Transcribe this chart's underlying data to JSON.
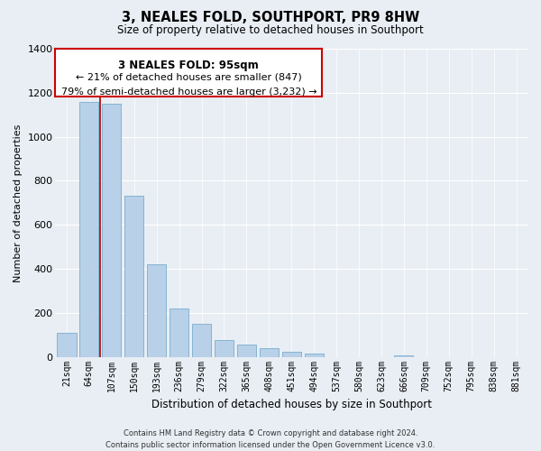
{
  "title": "3, NEALES FOLD, SOUTHPORT, PR9 8HW",
  "subtitle": "Size of property relative to detached houses in Southport",
  "xlabel": "Distribution of detached houses by size in Southport",
  "ylabel": "Number of detached properties",
  "categories": [
    "21sqm",
    "64sqm",
    "107sqm",
    "150sqm",
    "193sqm",
    "236sqm",
    "279sqm",
    "322sqm",
    "365sqm",
    "408sqm",
    "451sqm",
    "494sqm",
    "537sqm",
    "580sqm",
    "623sqm",
    "666sqm",
    "709sqm",
    "752sqm",
    "795sqm",
    "838sqm",
    "881sqm"
  ],
  "values": [
    110,
    1160,
    1150,
    730,
    420,
    220,
    150,
    75,
    55,
    38,
    22,
    15,
    0,
    0,
    0,
    5,
    0,
    0,
    0,
    0,
    0
  ],
  "bar_color": "#b8d0e8",
  "bar_edge_color": "#7aaed0",
  "marker_color": "#aa0000",
  "annotation_title": "3 NEALES FOLD: 95sqm",
  "annotation_line1": "← 21% of detached houses are smaller (847)",
  "annotation_line2": "79% of semi-detached houses are larger (3,232) →",
  "annotation_box_color": "#ffffff",
  "annotation_box_edge": "#cc0000",
  "ylim": [
    0,
    1400
  ],
  "yticks": [
    0,
    200,
    400,
    600,
    800,
    1000,
    1200,
    1400
  ],
  "footer_line1": "Contains HM Land Registry data © Crown copyright and database right 2024.",
  "footer_line2": "Contains public sector information licensed under the Open Government Licence v3.0.",
  "background_color": "#e8eef4",
  "grid_color": "#ffffff"
}
